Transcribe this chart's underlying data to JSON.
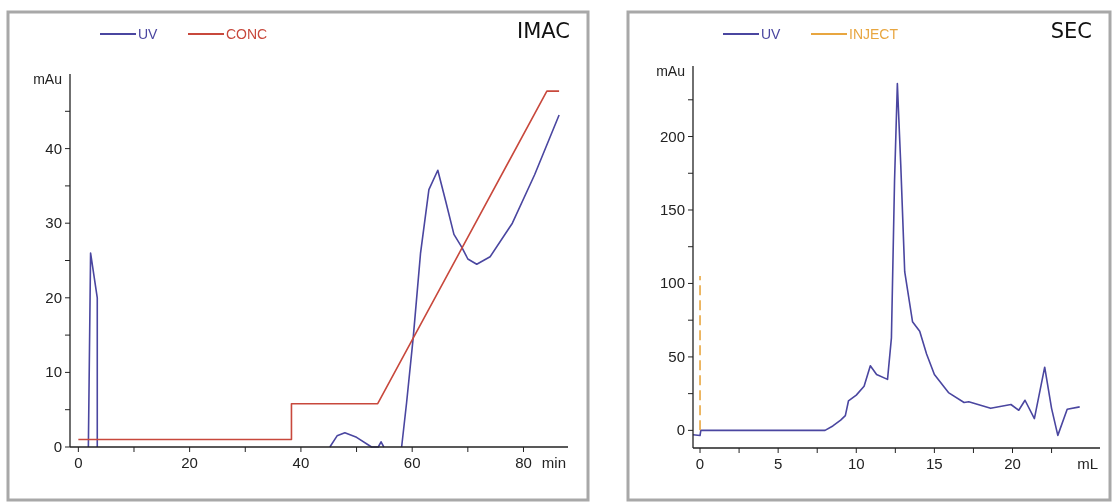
{
  "chart_data": [
    {
      "type": "line",
      "title": "IMAC",
      "xlabel": "min",
      "ylabel": "mAu",
      "legend": "top",
      "xlim": [
        -1.5,
        88
      ],
      "ylim": [
        0,
        50
      ],
      "xticks": [
        0,
        {
          "value": 10,
          "label": null
        },
        20,
        {
          "value": 30,
          "label": null
        },
        40,
        {
          "value": 50,
          "label": null
        },
        60,
        {
          "value": 70,
          "label": null
        },
        80
      ],
      "yticks": [
        0,
        {
          "value": 5,
          "label": null
        },
        10,
        {
          "value": 15,
          "label": null
        },
        20,
        {
          "value": 25,
          "label": null
        },
        30,
        {
          "value": 35,
          "label": null
        },
        40,
        {
          "value": 45,
          "label": null
        }
      ],
      "series": [
        {
          "name": "UV",
          "color": "#4a46a0",
          "x": [
            1.8,
            2.2,
            3.4,
            3.4,
            40,
            45.2,
            46.5,
            47.9,
            50,
            52.7,
            53.9,
            54.4,
            54.9,
            56,
            58.1,
            59,
            60.2,
            61.5,
            63,
            64.6,
            66,
            67.5,
            68.9,
            70,
            71.6,
            74,
            78,
            82,
            86.4
          ],
          "values": [
            0,
            26,
            20,
            0,
            null,
            0,
            1.5,
            1.9,
            1.3,
            0,
            0,
            0.7,
            0,
            null,
            0,
            6,
            14.8,
            26,
            34.5,
            37.1,
            33,
            28.5,
            26.8,
            25.2,
            24.5,
            25.5,
            30,
            36.5,
            44.5
          ]
        },
        {
          "name": "CONC",
          "color": "#c8483c",
          "x": [
            0,
            38.3,
            38.3,
            53.8,
            84.2,
            86.4
          ],
          "values": [
            1,
            1,
            5.8,
            5.8,
            47.7,
            47.7
          ]
        }
      ]
    },
    {
      "type": "line",
      "title": "SEC",
      "xlabel": "mL",
      "ylabel": "mAu",
      "legend": "top",
      "xlim": [
        -0.45,
        25.6
      ],
      "ylim": [
        -12,
        248
      ],
      "xticks": [
        0,
        {
          "value": 2.5,
          "label": null
        },
        5,
        {
          "value": 7.5,
          "label": null
        },
        10,
        {
          "value": 12.5,
          "label": null
        },
        15,
        {
          "value": 17.5,
          "label": null
        },
        20,
        {
          "value": 22.5,
          "label": null
        }
      ],
      "yticks": [
        0,
        {
          "value": 25,
          "label": null
        },
        50,
        {
          "value": 75,
          "label": null
        },
        100,
        {
          "value": 125,
          "label": null
        },
        150,
        {
          "value": 175,
          "label": null
        },
        200,
        {
          "value": 225,
          "label": null
        }
      ],
      "series": [
        {
          "name": "UV",
          "color": "#4a46a0",
          "x": [
            -0.45,
            0,
            0.05,
            2,
            4,
            6,
            8,
            8.5,
            9,
            9.3,
            9.5,
            10,
            10.5,
            10.9,
            11.3,
            12,
            12.25,
            12.45,
            12.63,
            12.85,
            13.1,
            13.6,
            14.06,
            14.5,
            15,
            15.9,
            16.9,
            17.2,
            18.6,
            19.9,
            20.4,
            20.8,
            21.4,
            22.06,
            22.5,
            22.9,
            23.5,
            24.3
          ],
          "values": [
            -3,
            -3.5,
            0,
            0,
            0,
            0,
            0,
            3,
            7,
            10,
            20,
            24,
            30,
            44,
            38,
            34.7,
            63,
            170,
            236,
            180,
            108,
            74,
            67.5,
            52,
            38,
            25.7,
            19,
            19.5,
            15,
            17.6,
            13.7,
            20.5,
            8,
            43,
            15,
            -3.4,
            14.4,
            16
          ]
        },
        {
          "name": "INJECT",
          "color": "#e8a640",
          "line_style": "dashed",
          "x": [
            0,
            0
          ],
          "values": [
            0,
            105
          ]
        }
      ]
    }
  ]
}
